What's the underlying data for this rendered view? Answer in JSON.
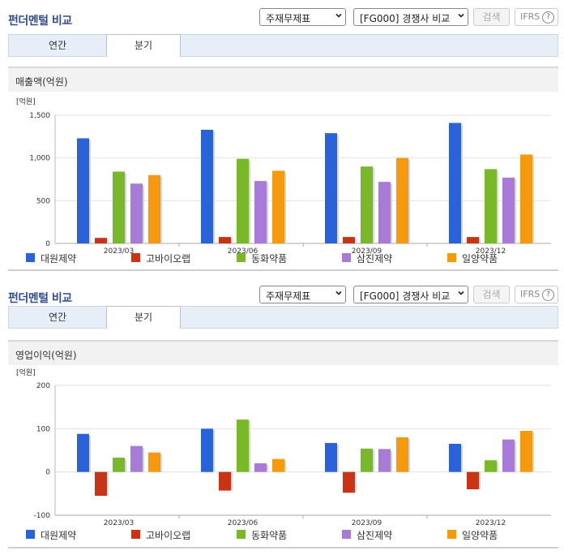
{
  "colors": {
    "series": [
      "#2a63d9",
      "#c93415",
      "#79b828",
      "#a87bd8",
      "#f5990e"
    ],
    "title": "#334d8f",
    "tab_bg": "#e8eef7"
  },
  "panels": [
    {
      "header": {
        "title": "펀더멘털 비교",
        "select1": "주재무제표",
        "select2": "[FG000] 경쟁사 비교",
        "search_label": "검색",
        "ifrs_label": "IFRS",
        "help_icon": "question-icon"
      },
      "tabs": [
        {
          "label": "연간",
          "active": false
        },
        {
          "label": "분기",
          "active": true
        }
      ],
      "section_title": "매출액(억원)",
      "chart_data": {
        "type": "bar",
        "unit_label": "[억원]",
        "categories": [
          "2023/03",
          "2023/06",
          "2023/09",
          "2023/12"
        ],
        "ylim": [
          0,
          1500
        ],
        "yticks": [
          0,
          500,
          1000,
          1500
        ],
        "ytick_labels": [
          "0",
          "500",
          "1,000",
          "1,500"
        ],
        "grid": true,
        "legend": "bottom",
        "series": [
          {
            "name": "대원제약",
            "values": [
              1230,
              1330,
              1290,
              1410
            ]
          },
          {
            "name": "고바이오랩",
            "values": [
              65,
              75,
              75,
              75
            ]
          },
          {
            "name": "동화약품",
            "values": [
              840,
              990,
              900,
              870
            ]
          },
          {
            "name": "삼진제약",
            "values": [
              700,
              730,
              720,
              770
            ]
          },
          {
            "name": "일양약품",
            "values": [
              800,
              850,
              1000,
              1040
            ]
          }
        ]
      }
    },
    {
      "header": {
        "title": "펀더멘털 비교",
        "select1": "주재무제표",
        "select2": "[FG000] 경쟁사 비교",
        "search_label": "검색",
        "ifrs_label": "IFRS",
        "help_icon": "question-icon"
      },
      "tabs": [
        {
          "label": "연간",
          "active": false
        },
        {
          "label": "분기",
          "active": true
        }
      ],
      "section_title": "영업이익(억원)",
      "chart_data": {
        "type": "bar",
        "unit_label": "[억원]",
        "categories": [
          "2023/03",
          "2023/06",
          "2023/09",
          "2023/12"
        ],
        "ylim": [
          -100,
          200
        ],
        "yticks": [
          -100,
          0,
          100,
          200
        ],
        "ytick_labels": [
          "-100",
          "0",
          "100",
          "200"
        ],
        "grid": true,
        "legend": "bottom",
        "series": [
          {
            "name": "대원제약",
            "values": [
              88,
              100,
              67,
              65
            ]
          },
          {
            "name": "고바이오랩",
            "values": [
              -55,
              -43,
              -48,
              -40
            ]
          },
          {
            "name": "동화약품",
            "values": [
              33,
              121,
              54,
              27
            ]
          },
          {
            "name": "삼진제약",
            "values": [
              60,
              20,
              53,
              75
            ]
          },
          {
            "name": "일양약품",
            "values": [
              45,
              30,
              80,
              95
            ]
          }
        ]
      }
    }
  ]
}
